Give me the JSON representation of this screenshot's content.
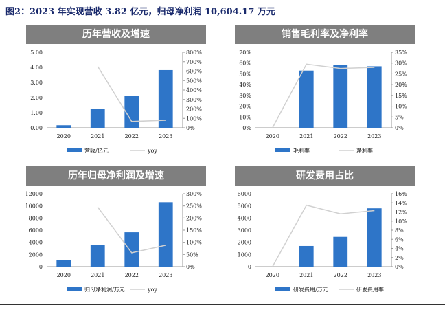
{
  "figure": {
    "title": "图2：2023 年实现营收 3.82 亿元，归母净利润 10,604.17 万元"
  },
  "colors": {
    "bar": "#2e75c8",
    "line": "#d0d0d0",
    "header": "#7f7f7f",
    "title": "#1a2a6c"
  },
  "chart_data": [
    {
      "type": "bar",
      "title": "历年营收及增速",
      "categories": [
        "2020",
        "2021",
        "2022",
        "2023"
      ],
      "series": [
        {
          "name": "营收/亿元",
          "type": "bar",
          "axis": "left",
          "values": [
            0.17,
            1.27,
            2.12,
            3.82
          ]
        },
        {
          "name": "yoy",
          "type": "line",
          "axis": "right",
          "values": [
            null,
            650,
            67,
            80
          ]
        }
      ],
      "y_left": {
        "min": 0,
        "max": 5,
        "ticks": [
          "0.00",
          "1.00",
          "2.00",
          "3.00",
          "4.00",
          "5.00"
        ]
      },
      "y_right": {
        "min": 0,
        "max": 800,
        "ticks": [
          "0%",
          "100%",
          "200%",
          "300%",
          "400%",
          "500%",
          "600%",
          "700%",
          "800%"
        ]
      },
      "legend": "bottom"
    },
    {
      "type": "bar",
      "title": "销售毛利率及净利率",
      "categories": [
        "2020",
        "2021",
        "2022",
        "2023"
      ],
      "series": [
        {
          "name": "毛利率",
          "type": "bar",
          "axis": "left",
          "values": [
            0,
            53,
            58,
            57
          ]
        },
        {
          "name": "净利率",
          "type": "line",
          "axis": "right",
          "values": [
            0,
            29.5,
            27.5,
            28
          ]
        }
      ],
      "y_left": {
        "min": 0,
        "max": 70,
        "ticks": [
          "0%",
          "10%",
          "20%",
          "30%",
          "40%",
          "50%",
          "60%",
          "70%"
        ]
      },
      "y_right": {
        "min": 0,
        "max": 35,
        "ticks": [
          "0%",
          "5%",
          "10%",
          "15%",
          "20%",
          "25%",
          "30%",
          "35%"
        ]
      },
      "legend": "bottom"
    },
    {
      "type": "bar",
      "title": "历年归母净利润及增速",
      "categories": [
        "2020",
        "2021",
        "2022",
        "2023"
      ],
      "series": [
        {
          "name": "归母净利润/万元",
          "type": "bar",
          "axis": "left",
          "values": [
            1050,
            3600,
            5650,
            10604
          ]
        },
        {
          "name": "yoy",
          "type": "line",
          "axis": "right",
          "values": [
            null,
            245,
            57,
            88
          ]
        }
      ],
      "y_left": {
        "min": 0,
        "max": 12000,
        "ticks": [
          "0",
          "2000",
          "4000",
          "6000",
          "8000",
          "10000",
          "12000"
        ]
      },
      "y_right": {
        "min": 0,
        "max": 300,
        "ticks": [
          "0%",
          "50%",
          "100%",
          "150%",
          "200%",
          "250%",
          "300%"
        ]
      },
      "legend": "bottom"
    },
    {
      "type": "bar",
      "title": "研发费用占比",
      "categories": [
        "2020",
        "2021",
        "2022",
        "2023"
      ],
      "series": [
        {
          "name": "研发费用/万元",
          "type": "bar",
          "axis": "left",
          "values": [
            0,
            1700,
            2450,
            4800
          ]
        },
        {
          "name": "研发费用率",
          "type": "line",
          "axis": "right",
          "values": [
            0,
            13.5,
            11.6,
            12.3
          ]
        }
      ],
      "y_left": {
        "min": 0,
        "max": 6000,
        "ticks": [
          "0",
          "1000",
          "2000",
          "3000",
          "4000",
          "5000",
          "6000"
        ]
      },
      "y_right": {
        "min": 0,
        "max": 16,
        "ticks": [
          "0%",
          "2%",
          "4%",
          "6%",
          "8%",
          "10%",
          "12%",
          "14%",
          "16%"
        ]
      },
      "legend": "bottom"
    }
  ]
}
